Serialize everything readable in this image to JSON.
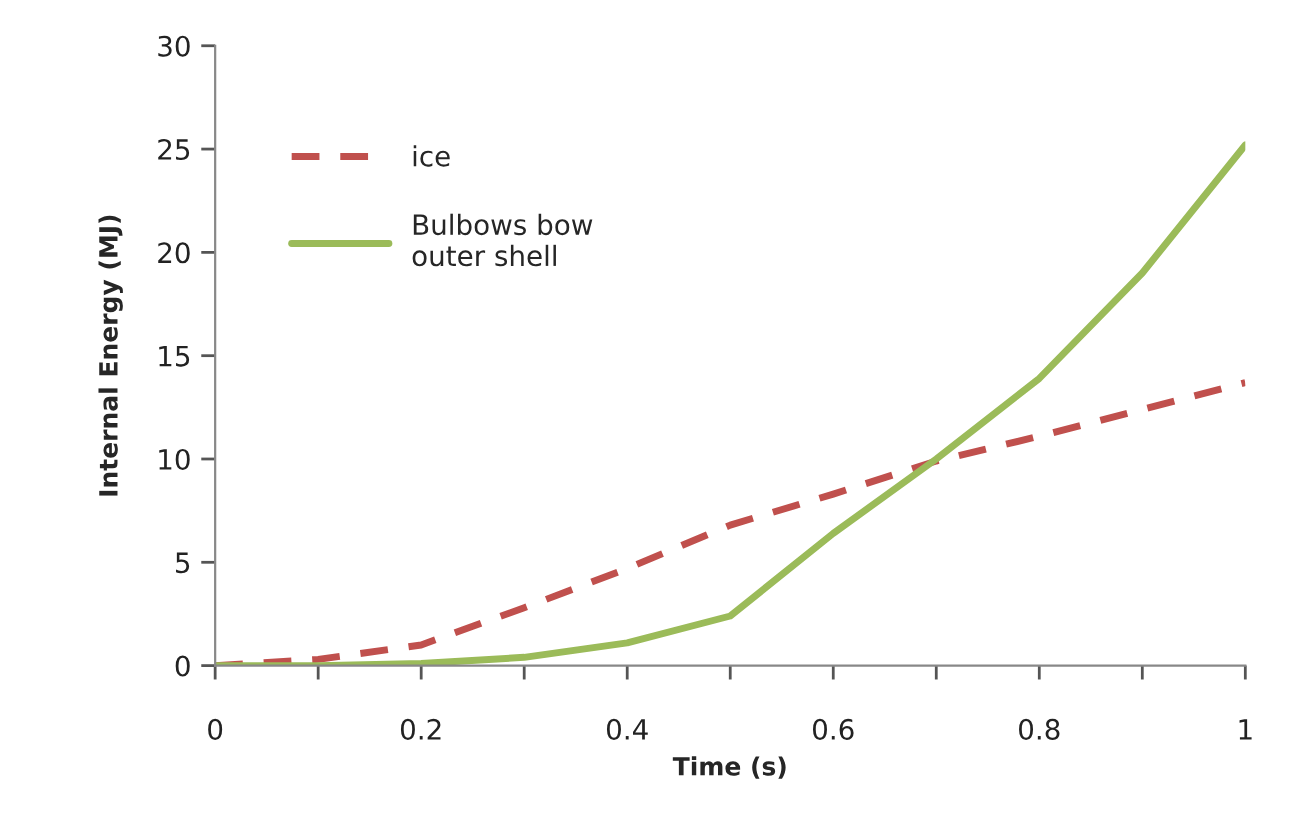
{
  "chart_data": {
    "type": "line",
    "xlabel": "Time (s)",
    "ylabel": "Internal Energy (MJ)",
    "x": [
      0,
      0.1,
      0.2,
      0.3,
      0.4,
      0.5,
      0.6,
      0.7,
      0.8,
      0.9,
      1.0
    ],
    "series": [
      {
        "name": "ice",
        "color": "#c0504d",
        "line_style": "dashed",
        "values": [
          0,
          0.3,
          1.0,
          2.8,
          4.7,
          6.8,
          8.3,
          9.9,
          11.1,
          12.4,
          13.7
        ]
      },
      {
        "name": "Bulbows bow\nouter shell",
        "color": "#9bbb59",
        "line_style": "solid",
        "values": [
          0,
          0,
          0.1,
          0.4,
          1.1,
          2.4,
          6.4,
          10.0,
          13.9,
          19.0,
          25.2
        ]
      }
    ],
    "xlim": [
      0,
      1
    ],
    "ylim": [
      0,
      30
    ],
    "xticks": [
      0,
      {
        "value": 0.1,
        "label": null
      },
      0.2,
      {
        "value": 0.3,
        "label": null
      },
      0.4,
      {
        "value": 0.5,
        "label": null
      },
      0.6,
      {
        "value": 0.7,
        "label": null
      },
      0.8,
      {
        "value": 0.9,
        "label": null
      },
      1
    ],
    "yticks": [
      0,
      5,
      10,
      15,
      20,
      25,
      30
    ],
    "grid": false,
    "legend": "top left",
    "marker": "none"
  }
}
